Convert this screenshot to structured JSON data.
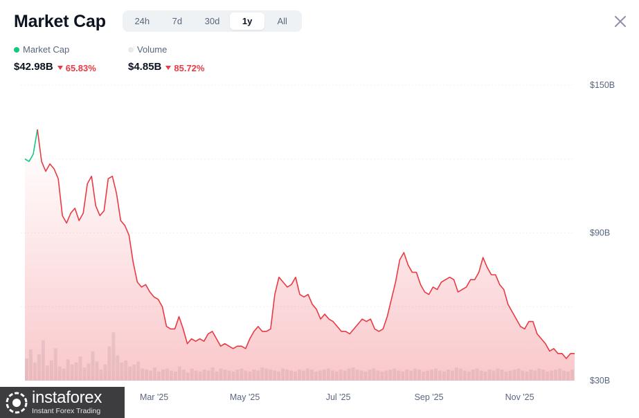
{
  "header": {
    "title": "Market Cap"
  },
  "range_tabs": [
    {
      "label": "24h",
      "active": false
    },
    {
      "label": "7d",
      "active": false
    },
    {
      "label": "30d",
      "active": false
    },
    {
      "label": "1y",
      "active": true
    },
    {
      "label": "All",
      "active": false
    }
  ],
  "legend": {
    "market_cap": {
      "label": "Market Cap",
      "value": "$42.98B",
      "change": "65.83%",
      "color": "#16c784"
    },
    "volume": {
      "label": "Volume",
      "value": "$4.85B",
      "change": "85.72%",
      "color": "#e8ebee"
    }
  },
  "colors": {
    "down": "#ea3943",
    "up": "#16c784",
    "axis_text": "#58667e",
    "volume": "#e8ebee"
  },
  "watermark": {
    "brand": "instaforex",
    "subtitle": "Instant Forex Trading"
  },
  "chart_data": {
    "type": "line",
    "x_ticks": [
      "Mar '25",
      "May '25",
      "Jul '25",
      "Sep '25",
      "Nov '25"
    ],
    "y_ticks": [
      "$150B",
      "$90B",
      "$30B"
    ],
    "ylim": [
      30,
      150
    ],
    "series": [
      {
        "name": "Market Cap",
        "unit": "B USD",
        "values": [
          120,
          119,
          122,
          132,
          119,
          115,
          118,
          116,
          112,
          97,
          94,
          98,
          100,
          95,
          98,
          110,
          113,
          101,
          97,
          99,
          112,
          113,
          106,
          95,
          93,
          89,
          78,
          70,
          68,
          69,
          66,
          64,
          63,
          60,
          52,
          51,
          51,
          56,
          51,
          45,
          47,
          46,
          47,
          46,
          49,
          50,
          47,
          44,
          45,
          44,
          43,
          44,
          44,
          43,
          47,
          50,
          52,
          50,
          50,
          51,
          65,
          72,
          70,
          68,
          69,
          72,
          65,
          64,
          65,
          61,
          59,
          55,
          57,
          55,
          54,
          52,
          50,
          50,
          49,
          51,
          53,
          55,
          54,
          55,
          51,
          50,
          51,
          56,
          63,
          70,
          79,
          82,
          77,
          74,
          74,
          69,
          66,
          65,
          68,
          67,
          70,
          71,
          72,
          71,
          66,
          67,
          68,
          71,
          71,
          74,
          80,
          76,
          73,
          73,
          69,
          67,
          61,
          58,
          55,
          52,
          51,
          54,
          54,
          49,
          47,
          45,
          42,
          43,
          41,
          41,
          39,
          41,
          41
        ],
        "color": "#ea3943"
      },
      {
        "name": "Volume",
        "values": [
          2.2,
          3.1,
          1.8,
          2.6,
          4.0,
          1.5,
          2.0,
          3.2,
          1.4,
          1.2,
          2.1,
          1.6,
          1.8,
          2.4,
          1.3,
          1.7,
          2.9,
          1.9,
          1.1,
          1.6,
          3.4,
          4.8,
          2.5,
          1.8,
          2.0,
          1.4,
          1.6,
          1.9,
          1.2,
          1.1,
          1.0,
          1.3,
          0.9,
          1.1,
          1.2,
          1.0,
          0.9,
          1.4,
          1.1,
          0.8,
          1.2,
          1.0,
          0.9,
          1.1,
          1.0,
          1.3,
          0.9,
          1.2,
          1.1,
          1.0,
          0.9,
          1.1,
          1.2,
          1.0,
          0.9,
          1.1,
          1.0,
          1.3,
          1.2,
          1.1,
          1.0,
          0.9,
          1.2,
          1.1,
          1.0,
          0.9,
          1.1,
          1.0,
          1.2,
          1.1,
          0.9,
          1.0,
          1.1,
          1.2,
          1.0,
          0.9,
          1.1,
          1.0,
          1.2,
          1.3,
          1.1,
          1.0,
          0.9,
          1.1,
          1.2,
          1.0,
          0.9,
          1.0,
          1.1,
          1.2,
          1.0,
          0.9,
          1.1,
          1.0,
          1.2,
          1.1,
          0.9,
          1.0,
          1.1,
          1.2,
          1.0,
          0.9,
          1.1,
          1.0,
          1.3,
          1.2,
          1.0,
          0.9,
          1.1,
          1.2,
          1.0,
          0.9,
          1.1,
          1.0,
          1.2,
          1.1,
          0.9,
          1.0,
          1.1,
          1.2,
          1.0,
          0.9,
          1.1,
          1.0,
          1.2,
          1.1,
          0.9,
          1.0,
          1.1,
          1.2,
          1.0,
          0.9,
          1.1
        ]
      }
    ]
  }
}
